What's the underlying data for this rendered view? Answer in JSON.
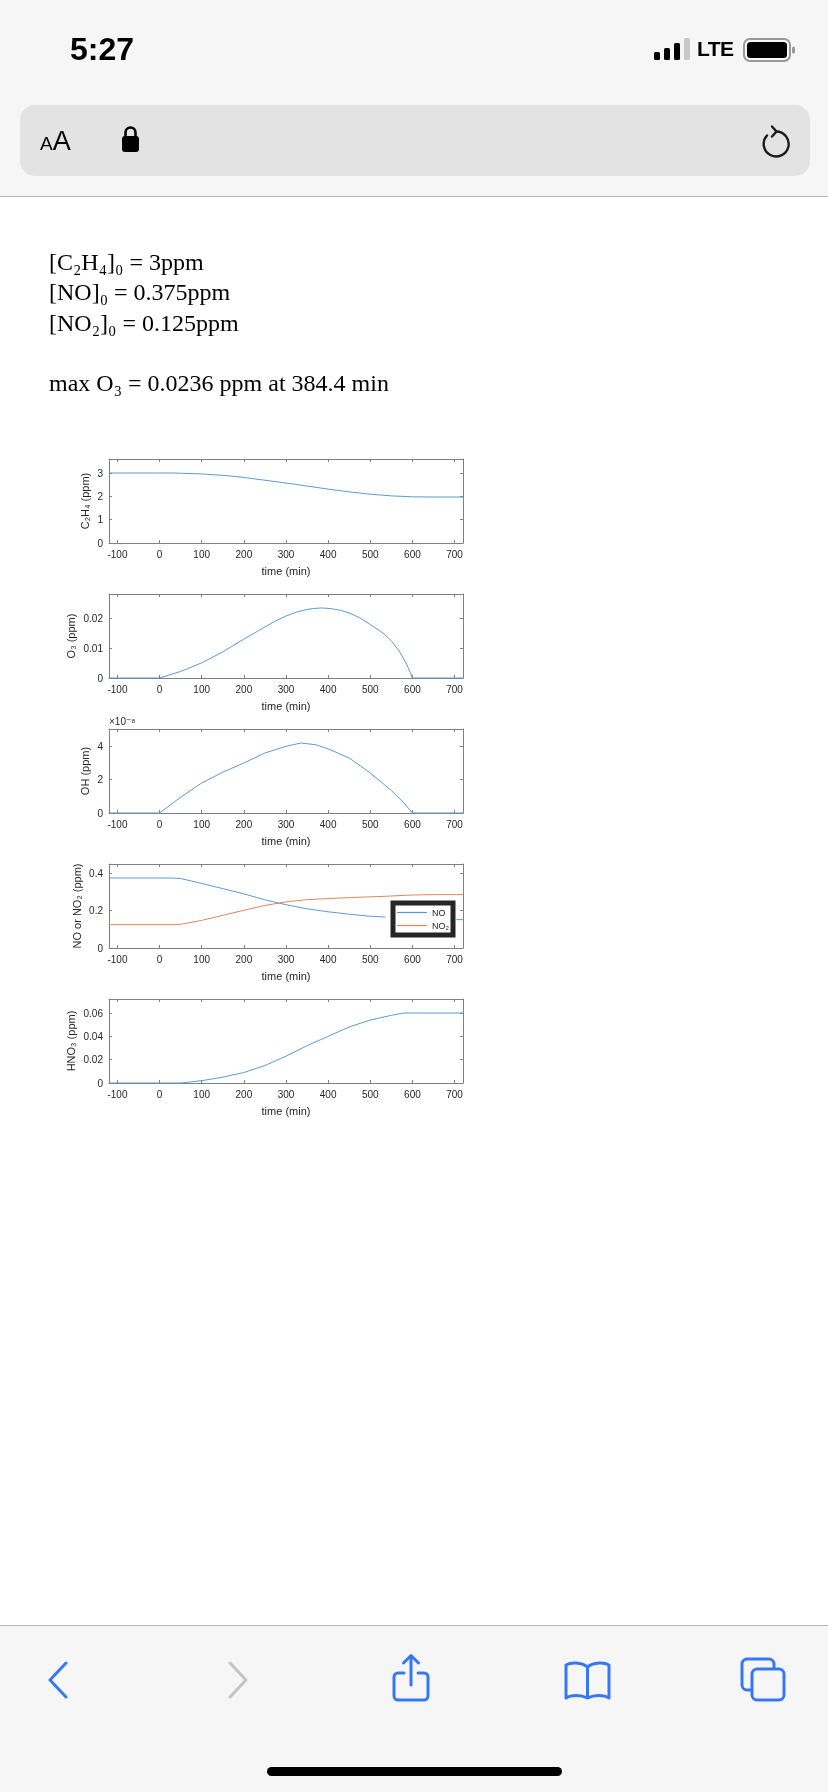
{
  "chart_data": [
    {
      "type": "line",
      "annotations": [
        "5:27",
        "LTE",
        "AA",
        "[C₂H₄]₀ = 3ppm",
        "[NO]₀ = 0.375ppm",
        "[NO₂]₀ = 0.125ppm",
        "max O₃ = 0.0236 ppm at 384.4 min"
      ],
      "xlabel": "time (min)",
      "ylabel": "C₂H₄ (ppm)",
      "x": [
        -120,
        0,
        30,
        50,
        100,
        150,
        200,
        250,
        300,
        350,
        400,
        450,
        500,
        550,
        600,
        650,
        720
      ],
      "series": [
        {
          "color": "#5b9bd5",
          "values": [
            3,
            3,
            3,
            2.99,
            2.96,
            2.9,
            2.81,
            2.69,
            2.57,
            2.44,
            2.31,
            2.19,
            2.09,
            2.02,
            1.98,
            1.97,
            1.97
          ]
        }
      ],
      "xlim": [
        -120,
        720
      ],
      "xticks": [
        -100,
        0,
        100,
        200,
        300,
        400,
        500,
        600,
        700
      ],
      "ylim": [
        0,
        3.6
      ],
      "yticks": [
        0,
        1,
        2,
        3
      ]
    },
    {
      "type": "line",
      "xlabel": "time (min)",
      "ylabel": "O₃ (ppm)",
      "x": [
        -120,
        0,
        50,
        100,
        150,
        200,
        250,
        275,
        300,
        325,
        350,
        365,
        384.4,
        405,
        430,
        450,
        475,
        500,
        530,
        550,
        570,
        585,
        595,
        600,
        720
      ],
      "series": [
        {
          "color": "#5b9bd5",
          "values": [
            0,
            0,
            0.0022,
            0.0051,
            0.0088,
            0.0131,
            0.0172,
            0.0192,
            0.0209,
            0.0222,
            0.0231,
            0.0234,
            0.0236,
            0.0234,
            0.0228,
            0.0219,
            0.0203,
            0.018,
            0.0152,
            0.0125,
            0.0088,
            0.005,
            0.0018,
            0,
            0
          ]
        }
      ],
      "xlim": [
        -120,
        720
      ],
      "xticks": [
        -100,
        0,
        100,
        200,
        300,
        400,
        500,
        600,
        700
      ],
      "ylim": [
        0,
        0.0283
      ],
      "yticks": [
        0,
        0.01,
        0.02
      ]
    },
    {
      "type": "line",
      "annotations": [
        "×10⁻⁸"
      ],
      "xlabel": "time (min)",
      "ylabel": "OH (ppm)",
      "x": [
        -120,
        0,
        50,
        100,
        150,
        200,
        250,
        300,
        335,
        370,
        400,
        450,
        500,
        550,
        580,
        600,
        720
      ],
      "series": [
        {
          "color": "#5b9bd5",
          "values": [
            0,
            0,
            0.95,
            1.8,
            2.45,
            3,
            3.6,
            4,
            4.2,
            4.1,
            3.85,
            3.3,
            2.4,
            1.35,
            0.6,
            0,
            0
          ]
        }
      ],
      "xlim": [
        -120,
        720
      ],
      "xticks": [
        -100,
        0,
        100,
        200,
        300,
        400,
        500,
        600,
        700
      ],
      "ylim": [
        0,
        5.04
      ],
      "yticks": [
        0,
        2,
        4
      ]
    },
    {
      "type": "line",
      "xlabel": "time (min)",
      "ylabel": "NO or NO₂ (ppm)",
      "legend": "bottom right",
      "x": [
        -120,
        0,
        30,
        50,
        100,
        150,
        200,
        250,
        300,
        350,
        400,
        450,
        500,
        535,
        600,
        650,
        705,
        720
      ],
      "series": [
        {
          "name": "NO",
          "color": "#5b9bd5",
          "values": [
            0.375,
            0.375,
            0.375,
            0.372,
            0.346,
            0.318,
            0.29,
            0.258,
            0.232,
            0.21,
            0.194,
            0.181,
            0.17,
            0.166,
            null,
            null,
            0.152,
            0.152
          ]
        },
        {
          "name": "NO₂",
          "color": "#e0865c",
          "values": [
            0.125,
            0.125,
            0.125,
            0.127,
            0.148,
            0.175,
            0.202,
            0.228,
            0.247,
            0.259,
            0.265,
            0.27,
            0.274,
            0.277,
            0.284,
            0.286,
            0.286,
            0.286
          ]
        }
      ],
      "xlim": [
        -120,
        720
      ],
      "xticks": [
        -100,
        0,
        100,
        200,
        300,
        400,
        500,
        600,
        700
      ],
      "ylim": [
        0,
        0.45
      ],
      "yticks": [
        0,
        0.2,
        0.4
      ]
    },
    {
      "type": "line",
      "xlabel": "time (min)",
      "ylabel": "HNO₃ (ppm)",
      "x": [
        -120,
        0,
        50,
        75,
        100,
        150,
        200,
        250,
        300,
        350,
        400,
        450,
        500,
        550,
        580,
        600,
        720
      ],
      "series": [
        {
          "color": "#5b9bd5",
          "values": [
            0,
            0,
            0,
            0.001,
            0.002,
            0.005,
            0.009,
            0.015,
            0.023,
            0.032,
            0.04,
            0.048,
            0.054,
            0.058,
            0.06,
            0.06,
            0.06
          ]
        }
      ],
      "xlim": [
        -120,
        720
      ],
      "xticks": [
        -100,
        0,
        100,
        200,
        300,
        400,
        500,
        600,
        700
      ],
      "ylim": [
        0,
        0.072
      ],
      "yticks": [
        0,
        0.02,
        0.04,
        0.06
      ]
    }
  ]
}
